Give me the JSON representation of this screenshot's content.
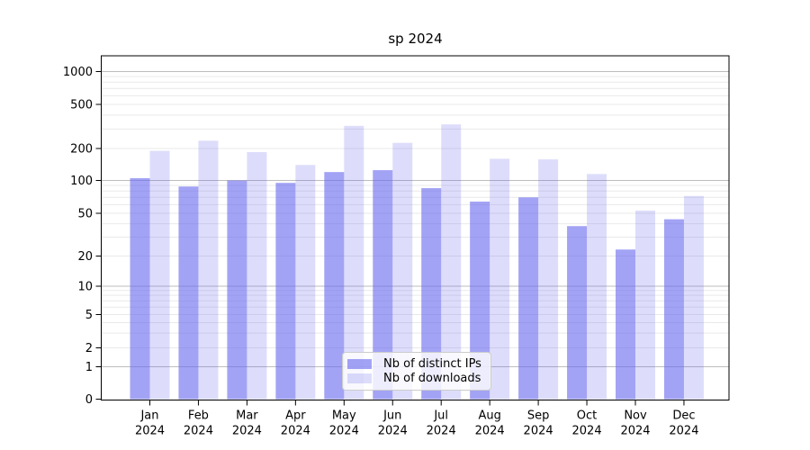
{
  "chart_data": {
    "type": "bar",
    "title": "sp 2024",
    "categories": [
      "Jan 2024",
      "Feb 2024",
      "Mar 2024",
      "Apr 2024",
      "May 2024",
      "Jun 2024",
      "Jul 2024",
      "Aug 2024",
      "Sep 2024",
      "Oct 2024",
      "Nov 2024",
      "Dec 2024"
    ],
    "series": [
      {
        "name": "Nb of distinct IPs",
        "color": "rgba(102,102,238,0.60)",
        "values": [
          105,
          88,
          100,
          95,
          120,
          125,
          85,
          64,
          70,
          38,
          23,
          44
        ]
      },
      {
        "name": "Nb of downloads",
        "color": "rgba(102,102,238,0.22)",
        "values": [
          190,
          235,
          185,
          140,
          320,
          225,
          330,
          160,
          158,
          115,
          53,
          72
        ]
      }
    ],
    "yscale": "symlog",
    "yticks": [
      0,
      1,
      2,
      5,
      10,
      20,
      50,
      100,
      200,
      500,
      1000
    ],
    "ylim": [
      0,
      1390
    ],
    "xlabel": "",
    "ylabel": "",
    "grid": "horizontal major and minor gridlines",
    "legend_position": "lower center inside plot"
  },
  "colors": {
    "bar_base": "#6666ee",
    "grid_major": "#bdbdbd",
    "grid_minor": "#e9e9e9",
    "axis": "#000000",
    "tick_label": "#000000",
    "legend_border": "#cccccc",
    "legend_bg": "rgba(255,255,255,0.8)"
  }
}
